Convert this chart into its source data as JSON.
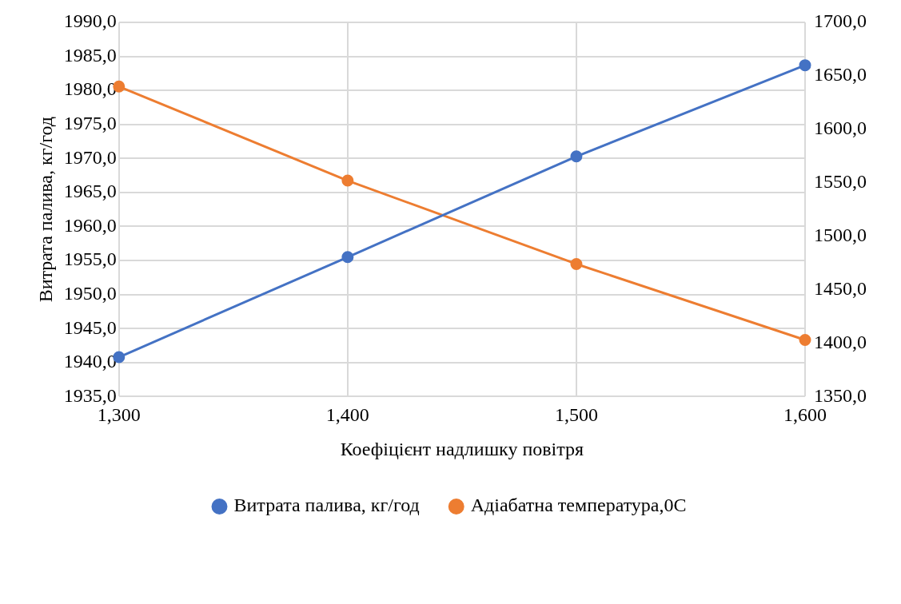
{
  "chart_data": {
    "type": "line",
    "xlabel": "Коефіцієнт надлишку повітря",
    "ylabel": "Витрата палива, кг/год",
    "categories": [
      "1,300",
      "1,400",
      "1,500",
      "1,600"
    ],
    "series": [
      {
        "name": "Витрата палива, кг/год",
        "color": "#4472c4",
        "values": [
          1940.8,
          1955.5,
          1970.3,
          1983.7
        ]
      },
      {
        "name": "Адіабатна температура,0С",
        "color": "#ed7d31",
        "values": [
          1640,
          1552,
          1474,
          1403
        ],
        "axis": "y2"
      }
    ],
    "ylim": [
      1935,
      1990
    ],
    "yticks": [
      {
        "value": 1935,
        "label": "1935,0"
      },
      {
        "value": 1940,
        "label": "1940,0"
      },
      {
        "value": 1945,
        "label": "1945,0"
      },
      {
        "value": 1950,
        "label": "1950,0"
      },
      {
        "value": 1955,
        "label": "1955,0"
      },
      {
        "value": 1960,
        "label": "1960,0"
      },
      {
        "value": 1965,
        "label": "1965,0"
      },
      {
        "value": 1970,
        "label": "1970,0"
      },
      {
        "value": 1975,
        "label": "1975,0"
      },
      {
        "value": 1980,
        "label": "1980,0"
      },
      {
        "value": 1985,
        "label": "1985,0"
      },
      {
        "value": 1990,
        "label": "1990,0"
      }
    ],
    "y2lim": [
      1350,
      1700
    ],
    "y2ticks": [
      {
        "value": 1350,
        "label": "1350,0"
      },
      {
        "value": 1400,
        "label": "1400,0"
      },
      {
        "value": 1450,
        "label": "1450,0"
      },
      {
        "value": 1500,
        "label": "1500,0"
      },
      {
        "value": 1550,
        "label": "1550,0"
      },
      {
        "value": 1600,
        "label": "1600,0"
      },
      {
        "value": 1650,
        "label": "1650,0"
      },
      {
        "value": 1700,
        "label": "1700,0"
      }
    ],
    "grid": true,
    "legend": "bottom",
    "marker": "circle",
    "line_style": "solid"
  }
}
